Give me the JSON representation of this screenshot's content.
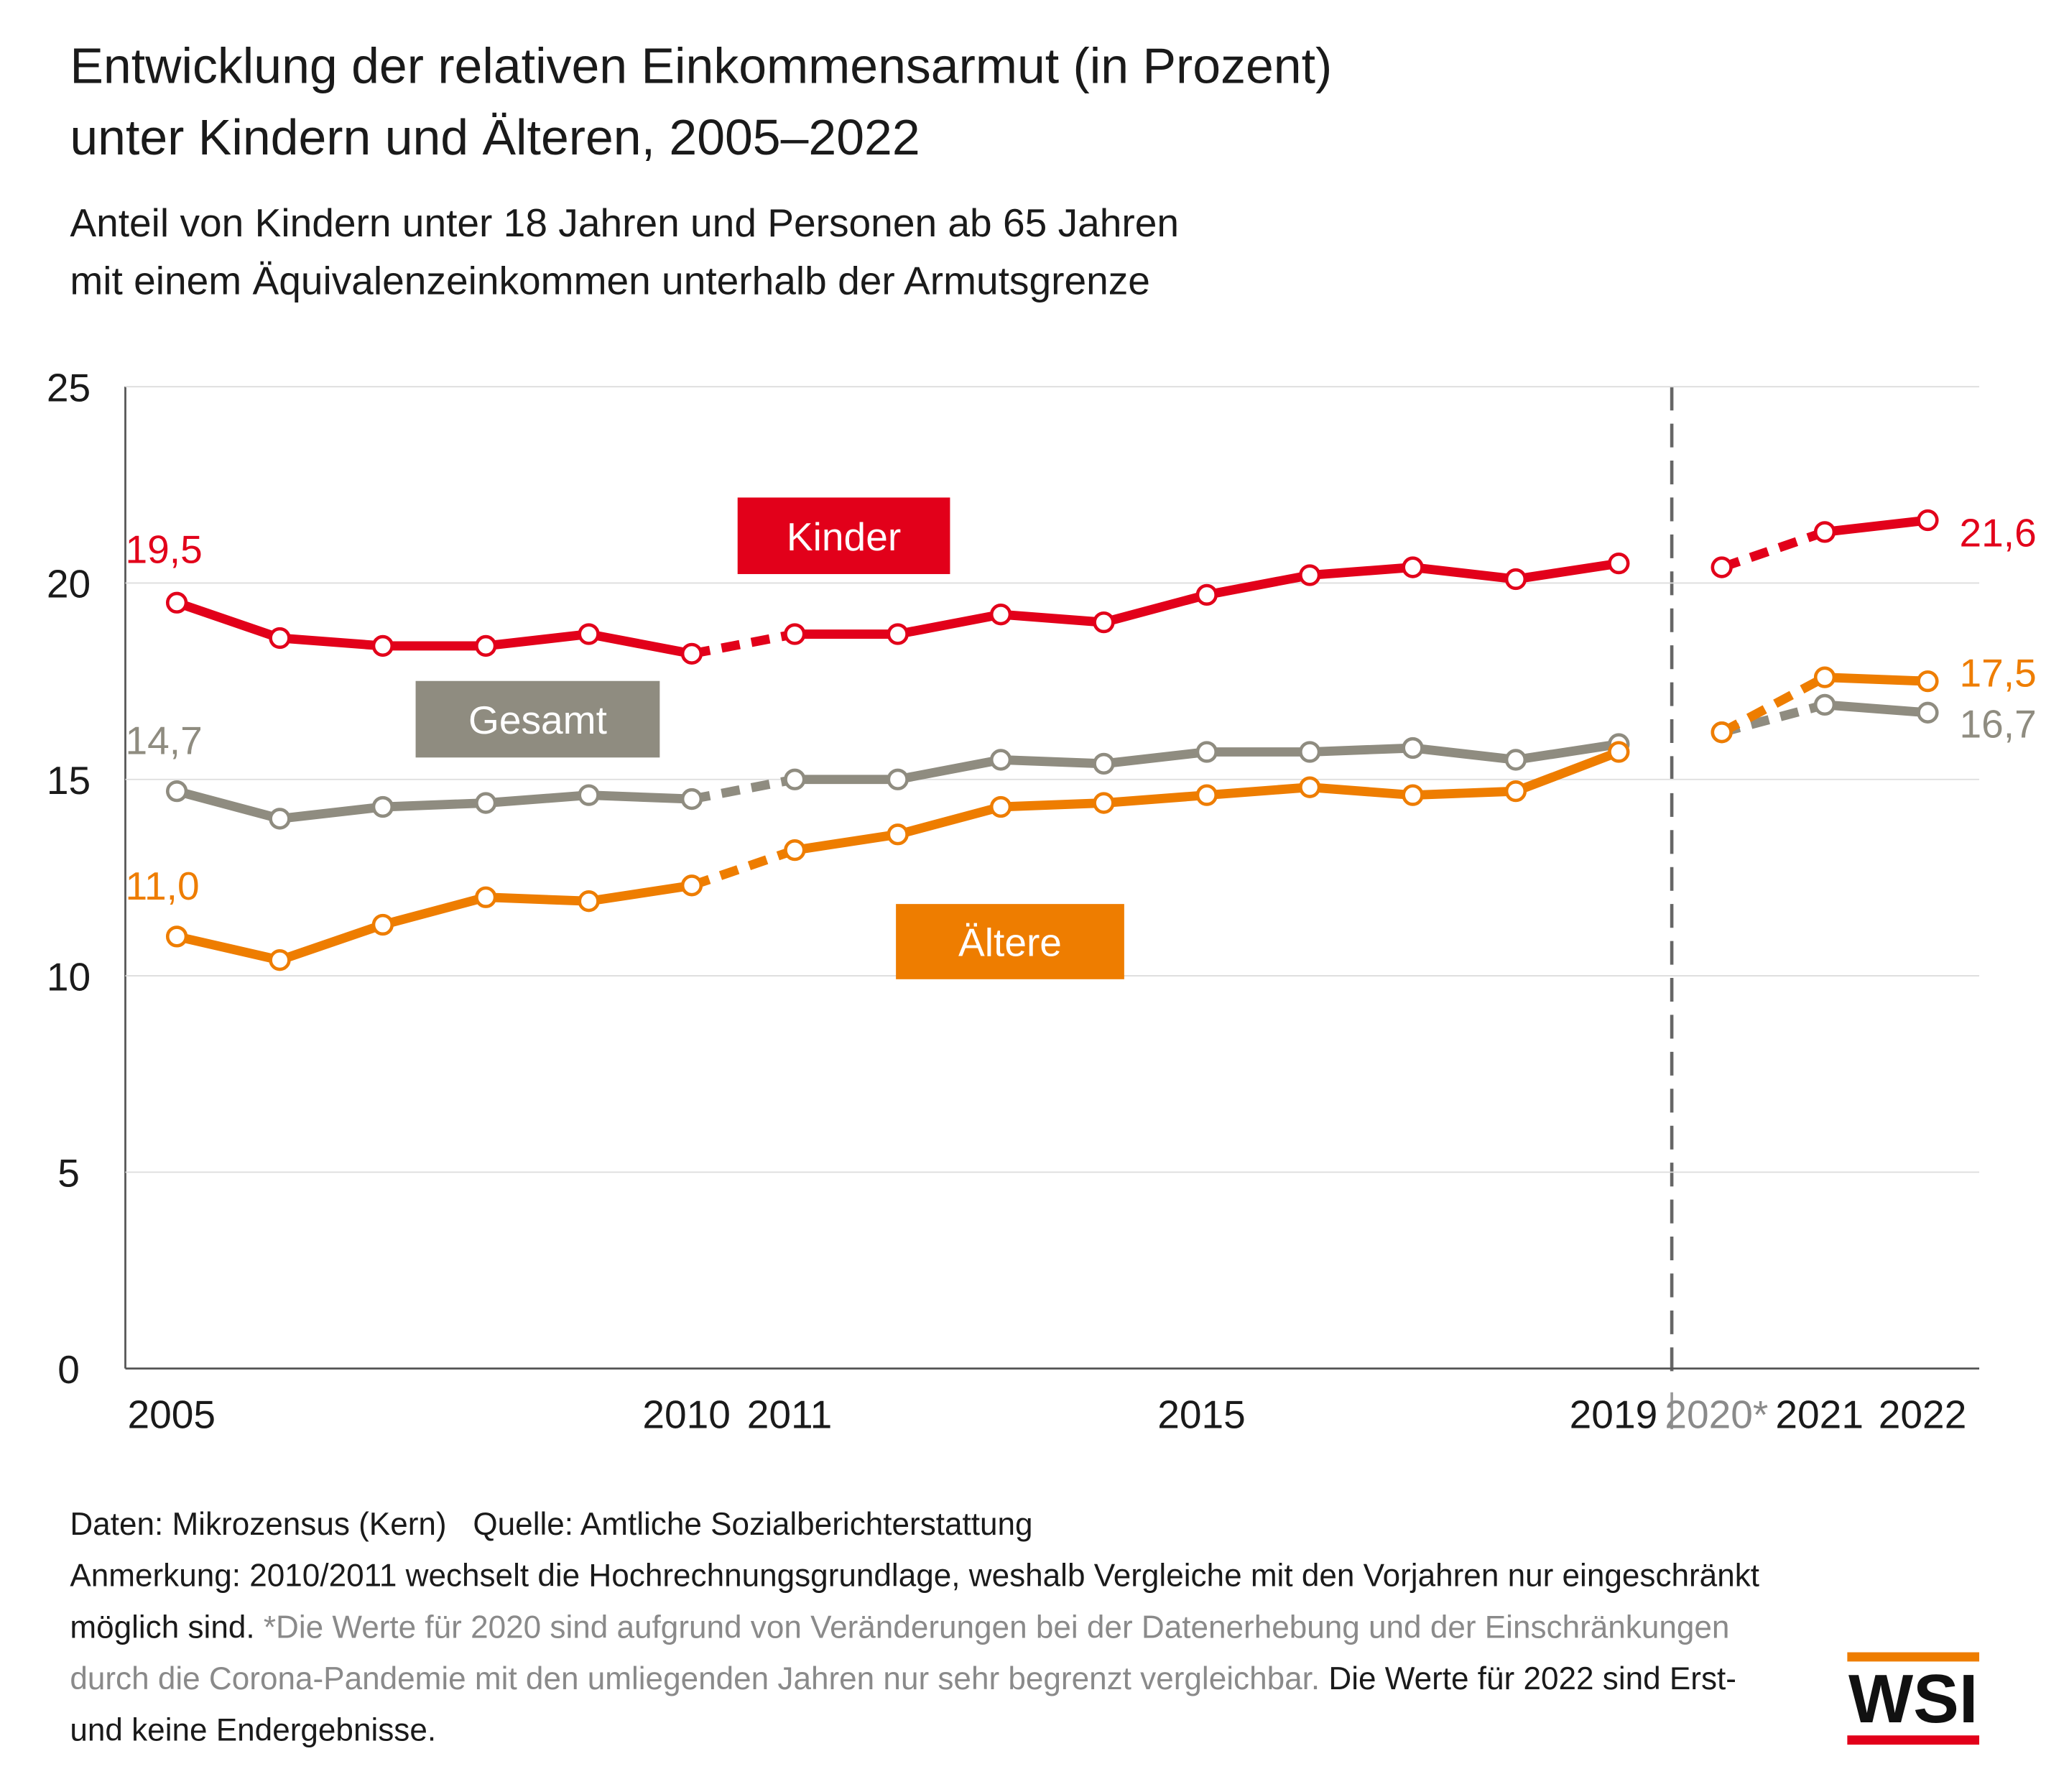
{
  "chart_data": {
    "type": "line",
    "title": "Entwicklung der relativen Einkommensarmut (in Prozent)",
    "title_line_2": "unter Kindern und Älteren, 2005–2022",
    "subtitle": "Anteil von Kindern unter 18 Jahren und Personen ab 65 Jahren",
    "subtitle_line_2": "mit einem Äquivalenzeinkommen unterhalb der Armutsgrenze",
    "categories": [
      "2005",
      null,
      null,
      null,
      null,
      "2010",
      "2011",
      null,
      null,
      null,
      "2015",
      null,
      null,
      null,
      "2019",
      "2020*",
      "2021",
      "2022"
    ],
    "series": [
      {
        "name": "Kinder",
        "color": "#e2001a",
        "values": [
          19.5,
          18.6,
          18.4,
          18.4,
          18.7,
          18.2,
          18.7,
          18.7,
          19.2,
          19.0,
          19.7,
          20.2,
          20.4,
          20.1,
          20.5,
          20.4,
          21.3,
          21.6
        ],
        "value_labels": [
          "19,5",
          null,
          null,
          null,
          null,
          null,
          null,
          null,
          null,
          null,
          null,
          null,
          null,
          null,
          null,
          null,
          null,
          "21,6"
        ]
      },
      {
        "name": "Gesamt",
        "color": "#8f8c80",
        "values": [
          14.7,
          14.0,
          14.3,
          14.4,
          14.6,
          14.5,
          15.0,
          15.0,
          15.5,
          15.4,
          15.7,
          15.7,
          15.8,
          15.5,
          15.9,
          16.2,
          16.9,
          16.7
        ],
        "value_labels": [
          "14,7",
          null,
          null,
          null,
          null,
          null,
          null,
          null,
          null,
          null,
          null,
          null,
          null,
          null,
          null,
          null,
          null,
          "16,7"
        ]
      },
      {
        "name": "Ältere",
        "color": "#ee7d00",
        "values": [
          11.0,
          10.4,
          11.3,
          12.0,
          11.9,
          12.3,
          13.2,
          13.6,
          14.3,
          14.4,
          14.6,
          14.8,
          14.6,
          14.7,
          15.7,
          16.2,
          17.6,
          17.5
        ],
        "value_labels": [
          "11,0",
          null,
          null,
          null,
          null,
          null,
          null,
          null,
          null,
          null,
          null,
          null,
          null,
          null,
          null,
          null,
          null,
          "17,5"
        ]
      }
    ],
    "ylim": [
      0,
      25
    ],
    "yticks": [
      0,
      5,
      10,
      15,
      20,
      25
    ],
    "grid": true
  },
  "footer": {
    "data": "Daten: Mikrozensus (Kern)",
    "source": "Quelle: Amtliche Sozialberichterstattung",
    "note_1": "Anmerkung: 2010/2011 wechselt die Hochrechnungsgrundlage, weshalb Vergleiche mit den Vorjahren nur eingeschränkt möglich sind.",
    "note_2": "*Die Werte für 2020 sind aufgrund von Veränderungen bei der Datenerhebung und der Einschränkungen durch die Corona-Pandemie mit den umliegenden Jahren nur sehr begrenzt vergleichbar.",
    "note_3": "Die Werte für 2022 sind Erst- und keine Endergebnisse.",
    "logo": "WSI"
  }
}
